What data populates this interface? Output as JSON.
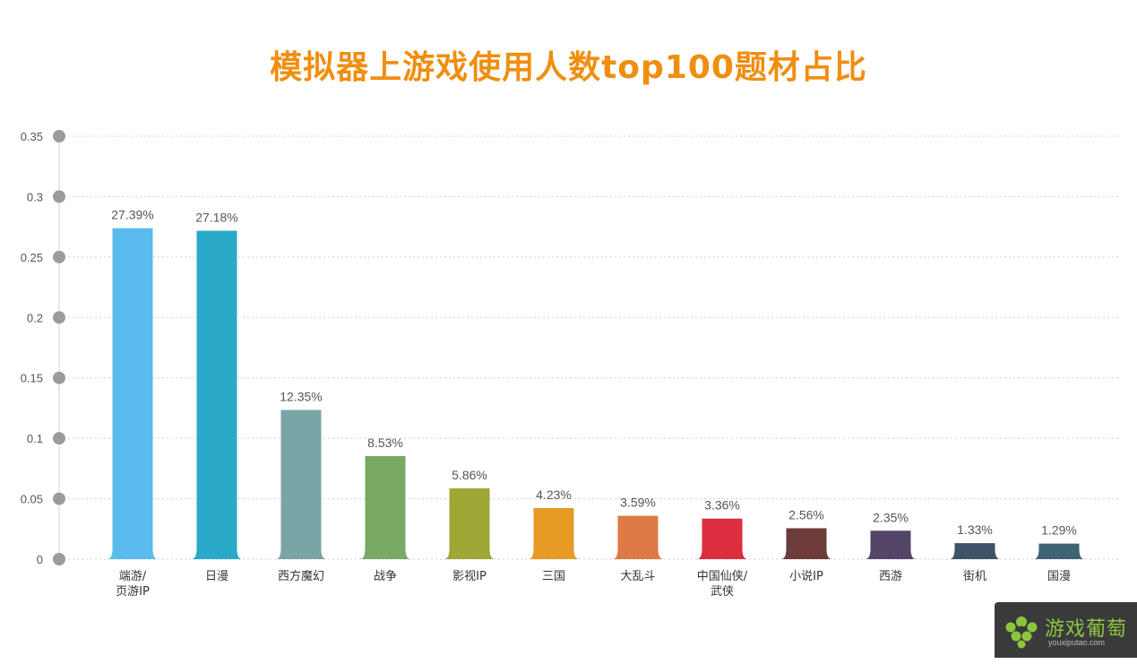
{
  "chart_data": {
    "type": "bar",
    "title": "模拟器上游戏使用人数top100题材占比",
    "xlabel": "",
    "ylabel": "",
    "ylim": [
      0,
      0.35
    ],
    "yticks": [
      "0",
      "0.05",
      "0.1",
      "0.15",
      "0.2",
      "0.25",
      "0.3",
      "0.35"
    ],
    "grid": true,
    "categories": [
      [
        "端游/",
        "页游IP"
      ],
      [
        "日漫"
      ],
      [
        "西方魔幻"
      ],
      [
        "战争"
      ],
      [
        "影视IP"
      ],
      [
        "三国"
      ],
      [
        "大乱斗"
      ],
      [
        "中国仙侠/",
        "武侠"
      ],
      [
        "小说IP"
      ],
      [
        "西游"
      ],
      [
        "街机"
      ],
      [
        "国漫"
      ]
    ],
    "values": [
      0.2739,
      0.2718,
      0.1235,
      0.0853,
      0.0586,
      0.0423,
      0.0359,
      0.0336,
      0.0256,
      0.0235,
      0.0133,
      0.0129
    ],
    "data_labels": [
      "27.39%",
      "27.18%",
      "12.35%",
      "8.53%",
      "5.86%",
      "4.23%",
      "3.59%",
      "3.36%",
      "2.56%",
      "2.35%",
      "1.33%",
      "1.29%"
    ],
    "colors": [
      "#5bbbef",
      "#2aa9c9",
      "#7aa5a7",
      "#78a965",
      "#9ea636",
      "#e79b25",
      "#dd7a46",
      "#dc2e3f",
      "#6c3b3a",
      "#544669",
      "#3e5466",
      "#3e6372"
    ]
  },
  "watermark": {
    "name": "游戏葡萄",
    "url": "youxiputao.com",
    "icon": "grape-icon",
    "color": "#8cc63f"
  }
}
